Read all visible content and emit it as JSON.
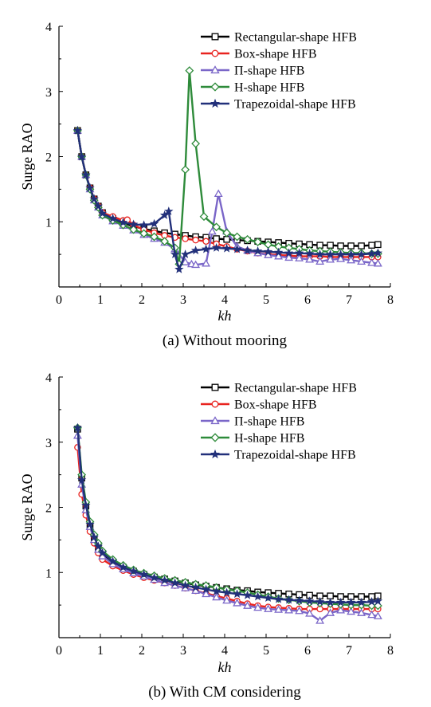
{
  "colors": {
    "Rectangular-shape HFB": "#000000",
    "Box-shape HFB": "#e8231f",
    "Π-shape HFB": "#7a66c8",
    "H-shape HFB": "#2e8b3a",
    "Trapezoidal-shape HFB": "#22307a"
  },
  "markers": {
    "Rectangular-shape HFB": "square",
    "Box-shape HFB": "circle",
    "Π-shape HFB": "triangle",
    "H-shape HFB": "diamond",
    "Trapezoidal-shape HFB": "star"
  },
  "chart_data": [
    {
      "type": "line",
      "caption": "(a) Without mooring",
      "xlabel": "kh",
      "ylabel": "Surge RAO",
      "xlim": [
        0,
        8
      ],
      "ylim": [
        0,
        4
      ],
      "xticks": [
        0,
        1,
        2,
        3,
        4,
        5,
        6,
        7,
        8
      ],
      "yticks": [
        0,
        1,
        2,
        3,
        4
      ],
      "legend_position": "top-right",
      "series": [
        {
          "name": "Rectangular-shape HFB",
          "x": [
            0.45,
            0.55,
            0.65,
            0.75,
            0.85,
            0.95,
            1.05,
            1.3,
            1.55,
            1.8,
            2.05,
            2.3,
            2.55,
            2.8,
            3.05,
            3.3,
            3.55,
            3.8,
            4.05,
            4.3,
            4.55,
            4.8,
            5.05,
            5.3,
            5.55,
            5.8,
            6.05,
            6.3,
            6.55,
            6.8,
            7.05,
            7.3,
            7.55,
            7.7
          ],
          "y": [
            2.4,
            2.0,
            1.72,
            1.52,
            1.35,
            1.24,
            1.14,
            1.05,
            0.98,
            0.93,
            0.89,
            0.86,
            0.83,
            0.81,
            0.79,
            0.77,
            0.76,
            0.74,
            0.73,
            0.72,
            0.71,
            0.7,
            0.69,
            0.68,
            0.67,
            0.66,
            0.65,
            0.64,
            0.64,
            0.63,
            0.63,
            0.63,
            0.64,
            0.65
          ]
        },
        {
          "name": "Box-shape HFB",
          "x": [
            0.45,
            0.55,
            0.65,
            0.75,
            0.85,
            0.95,
            1.05,
            1.3,
            1.55,
            1.65,
            1.8,
            2.05,
            2.3,
            2.55,
            2.8,
            3.05,
            3.3,
            3.55,
            3.8,
            4.05,
            4.3,
            4.55,
            4.8,
            5.05,
            5.3,
            5.55,
            5.8,
            6.05,
            6.3,
            6.55,
            6.8,
            7.05,
            7.3,
            7.55,
            7.7
          ],
          "y": [
            2.4,
            2.0,
            1.72,
            1.52,
            1.35,
            1.24,
            1.14,
            1.08,
            1.02,
            1.03,
            0.95,
            0.88,
            0.83,
            0.79,
            0.76,
            0.74,
            0.72,
            0.7,
            0.66,
            0.62,
            0.58,
            0.55,
            0.52,
            0.5,
            0.49,
            0.48,
            0.47,
            0.47,
            0.47,
            0.46,
            0.46,
            0.46,
            0.46,
            0.46,
            0.46
          ]
        },
        {
          "name": "Π-shape HFB",
          "x": [
            0.45,
            0.55,
            0.65,
            0.75,
            0.85,
            0.95,
            1.05,
            1.3,
            1.55,
            1.8,
            2.05,
            2.3,
            2.55,
            2.8,
            3.05,
            3.2,
            3.3,
            3.55,
            3.7,
            3.85,
            4.05,
            4.3,
            4.55,
            4.8,
            5.05,
            5.3,
            5.55,
            5.8,
            6.05,
            6.3,
            6.55,
            6.8,
            7.05,
            7.3,
            7.55,
            7.7
          ],
          "y": [
            2.4,
            2.0,
            1.72,
            1.5,
            1.33,
            1.22,
            1.1,
            1.01,
            0.94,
            0.87,
            0.8,
            0.74,
            0.68,
            0.58,
            0.38,
            0.35,
            0.34,
            0.36,
            0.85,
            1.43,
            0.85,
            0.62,
            0.56,
            0.52,
            0.49,
            0.47,
            0.45,
            0.44,
            0.42,
            0.39,
            0.42,
            0.43,
            0.41,
            0.39,
            0.37,
            0.36
          ]
        },
        {
          "name": "H-shape HFB",
          "x": [
            0.45,
            0.55,
            0.65,
            0.75,
            0.85,
            0.95,
            1.05,
            1.3,
            1.55,
            1.8,
            2.05,
            2.3,
            2.55,
            2.8,
            2.9,
            3.05,
            3.15,
            3.3,
            3.5,
            3.8,
            4.05,
            4.3,
            4.55,
            4.8,
            5.05,
            5.3,
            5.55,
            5.8,
            6.05,
            6.3,
            6.55,
            6.8,
            7.05,
            7.3,
            7.55,
            7.7
          ],
          "y": [
            2.4,
            2.0,
            1.72,
            1.5,
            1.33,
            1.22,
            1.1,
            1.02,
            0.95,
            0.88,
            0.82,
            0.77,
            0.7,
            0.6,
            0.35,
            1.8,
            3.32,
            2.2,
            1.08,
            0.92,
            0.83,
            0.77,
            0.73,
            0.69,
            0.65,
            0.62,
            0.6,
            0.58,
            0.56,
            0.55,
            0.54,
            0.53,
            0.52,
            0.52,
            0.51,
            0.51
          ]
        },
        {
          "name": "Trapezoidal-shape HFB",
          "x": [
            0.45,
            0.55,
            0.65,
            0.75,
            0.85,
            0.95,
            1.05,
            1.3,
            1.55,
            1.8,
            2.05,
            2.3,
            2.55,
            2.65,
            2.8,
            2.9,
            3.05,
            3.3,
            3.55,
            3.8,
            4.05,
            4.3,
            4.55,
            4.8,
            5.05,
            5.3,
            5.55,
            5.8,
            6.05,
            6.3,
            6.55,
            6.8,
            7.05,
            7.3,
            7.55,
            7.7
          ],
          "y": [
            2.4,
            2.0,
            1.72,
            1.52,
            1.35,
            1.24,
            1.13,
            1.05,
            0.99,
            0.96,
            0.95,
            0.97,
            1.1,
            1.16,
            0.5,
            0.27,
            0.5,
            0.56,
            0.58,
            0.6,
            0.59,
            0.58,
            0.56,
            0.55,
            0.54,
            0.53,
            0.52,
            0.52,
            0.51,
            0.5,
            0.5,
            0.5,
            0.5,
            0.5,
            0.51,
            0.52
          ]
        }
      ]
    },
    {
      "type": "line",
      "caption": "(b) With CM considering",
      "xlabel": "kh",
      "ylabel": "Surge RAO",
      "xlim": [
        0,
        8
      ],
      "ylim": [
        0,
        4
      ],
      "xticks": [
        0,
        1,
        2,
        3,
        4,
        5,
        6,
        7,
        8
      ],
      "yticks": [
        0,
        1,
        2,
        3,
        4
      ],
      "legend_position": "top-right",
      "series": [
        {
          "name": "Rectangular-shape HFB",
          "x": [
            0.45,
            0.55,
            0.65,
            0.75,
            0.85,
            0.95,
            1.05,
            1.3,
            1.55,
            1.8,
            2.05,
            2.3,
            2.55,
            2.8,
            3.05,
            3.3,
            3.55,
            3.8,
            4.05,
            4.3,
            4.55,
            4.8,
            5.05,
            5.3,
            5.55,
            5.8,
            6.05,
            6.3,
            6.55,
            6.8,
            7.05,
            7.3,
            7.55,
            7.7
          ],
          "y": [
            3.2,
            2.45,
            2.02,
            1.72,
            1.52,
            1.38,
            1.28,
            1.16,
            1.08,
            1.02,
            0.97,
            0.93,
            0.9,
            0.87,
            0.84,
            0.81,
            0.79,
            0.77,
            0.75,
            0.73,
            0.72,
            0.7,
            0.69,
            0.68,
            0.67,
            0.66,
            0.65,
            0.64,
            0.64,
            0.63,
            0.63,
            0.63,
            0.63,
            0.64
          ]
        },
        {
          "name": "Box-shape HFB",
          "x": [
            0.45,
            0.55,
            0.65,
            0.75,
            0.85,
            0.95,
            1.05,
            1.3,
            1.55,
            1.8,
            2.05,
            2.3,
            2.55,
            2.8,
            3.05,
            3.3,
            3.55,
            3.8,
            4.05,
            4.3,
            4.55,
            4.8,
            5.05,
            5.3,
            5.55,
            5.8,
            6.05,
            6.3,
            6.55,
            6.8,
            7.05,
            7.3,
            7.55,
            7.7
          ],
          "y": [
            2.92,
            2.2,
            1.88,
            1.63,
            1.45,
            1.3,
            1.2,
            1.1,
            1.03,
            0.97,
            0.92,
            0.88,
            0.84,
            0.8,
            0.76,
            0.72,
            0.68,
            0.64,
            0.6,
            0.56,
            0.52,
            0.49,
            0.47,
            0.46,
            0.45,
            0.44,
            0.44,
            0.44,
            0.44,
            0.44,
            0.44,
            0.44,
            0.44,
            0.44
          ]
        },
        {
          "name": "Π-shape HFB",
          "x": [
            0.45,
            0.55,
            0.65,
            0.75,
            0.85,
            0.95,
            1.05,
            1.3,
            1.55,
            1.8,
            2.05,
            2.3,
            2.55,
            2.8,
            3.05,
            3.3,
            3.55,
            3.8,
            4.05,
            4.3,
            4.55,
            4.8,
            5.05,
            5.3,
            5.55,
            5.8,
            6.05,
            6.3,
            6.55,
            6.8,
            7.05,
            7.3,
            7.55,
            7.7
          ],
          "y": [
            3.1,
            2.35,
            1.96,
            1.7,
            1.5,
            1.35,
            1.25,
            1.13,
            1.05,
            0.99,
            0.94,
            0.89,
            0.84,
            0.8,
            0.76,
            0.72,
            0.67,
            0.62,
            0.57,
            0.53,
            0.49,
            0.46,
            0.44,
            0.43,
            0.42,
            0.41,
            0.37,
            0.26,
            0.38,
            0.42,
            0.4,
            0.38,
            0.35,
            0.33
          ]
        },
        {
          "name": "H-shape HFB",
          "x": [
            0.45,
            0.55,
            0.65,
            0.75,
            0.85,
            0.95,
            1.05,
            1.3,
            1.55,
            1.8,
            2.05,
            2.3,
            2.55,
            2.8,
            3.05,
            3.3,
            3.55,
            3.8,
            4.05,
            4.3,
            4.55,
            4.8,
            5.05,
            5.3,
            5.55,
            5.8,
            6.05,
            6.3,
            6.55,
            6.8,
            7.05,
            7.3,
            7.55,
            7.7
          ],
          "y": [
            3.22,
            2.5,
            2.08,
            1.78,
            1.58,
            1.45,
            1.33,
            1.2,
            1.11,
            1.04,
            0.99,
            0.95,
            0.91,
            0.88,
            0.85,
            0.82,
            0.8,
            0.77,
            0.74,
            0.72,
            0.69,
            0.66,
            0.63,
            0.6,
            0.58,
            0.56,
            0.54,
            0.53,
            0.52,
            0.51,
            0.5,
            0.5,
            0.49,
            0.49
          ]
        },
        {
          "name": "Trapezoidal-shape HFB",
          "x": [
            0.45,
            0.55,
            0.65,
            0.75,
            0.85,
            0.95,
            1.05,
            1.3,
            1.55,
            1.8,
            2.05,
            2.3,
            2.55,
            2.8,
            3.05,
            3.3,
            3.55,
            3.8,
            4.05,
            4.3,
            4.55,
            4.8,
            5.05,
            5.3,
            5.55,
            5.8,
            6.05,
            6.3,
            6.55,
            6.8,
            7.05,
            7.3,
            7.55,
            7.7
          ],
          "y": [
            3.22,
            2.42,
            2.03,
            1.74,
            1.54,
            1.4,
            1.3,
            1.17,
            1.08,
            1.02,
            0.97,
            0.92,
            0.88,
            0.84,
            0.8,
            0.77,
            0.74,
            0.71,
            0.69,
            0.67,
            0.65,
            0.63,
            0.61,
            0.59,
            0.58,
            0.57,
            0.56,
            0.55,
            0.54,
            0.54,
            0.54,
            0.54,
            0.55,
            0.56
          ]
        }
      ]
    }
  ]
}
